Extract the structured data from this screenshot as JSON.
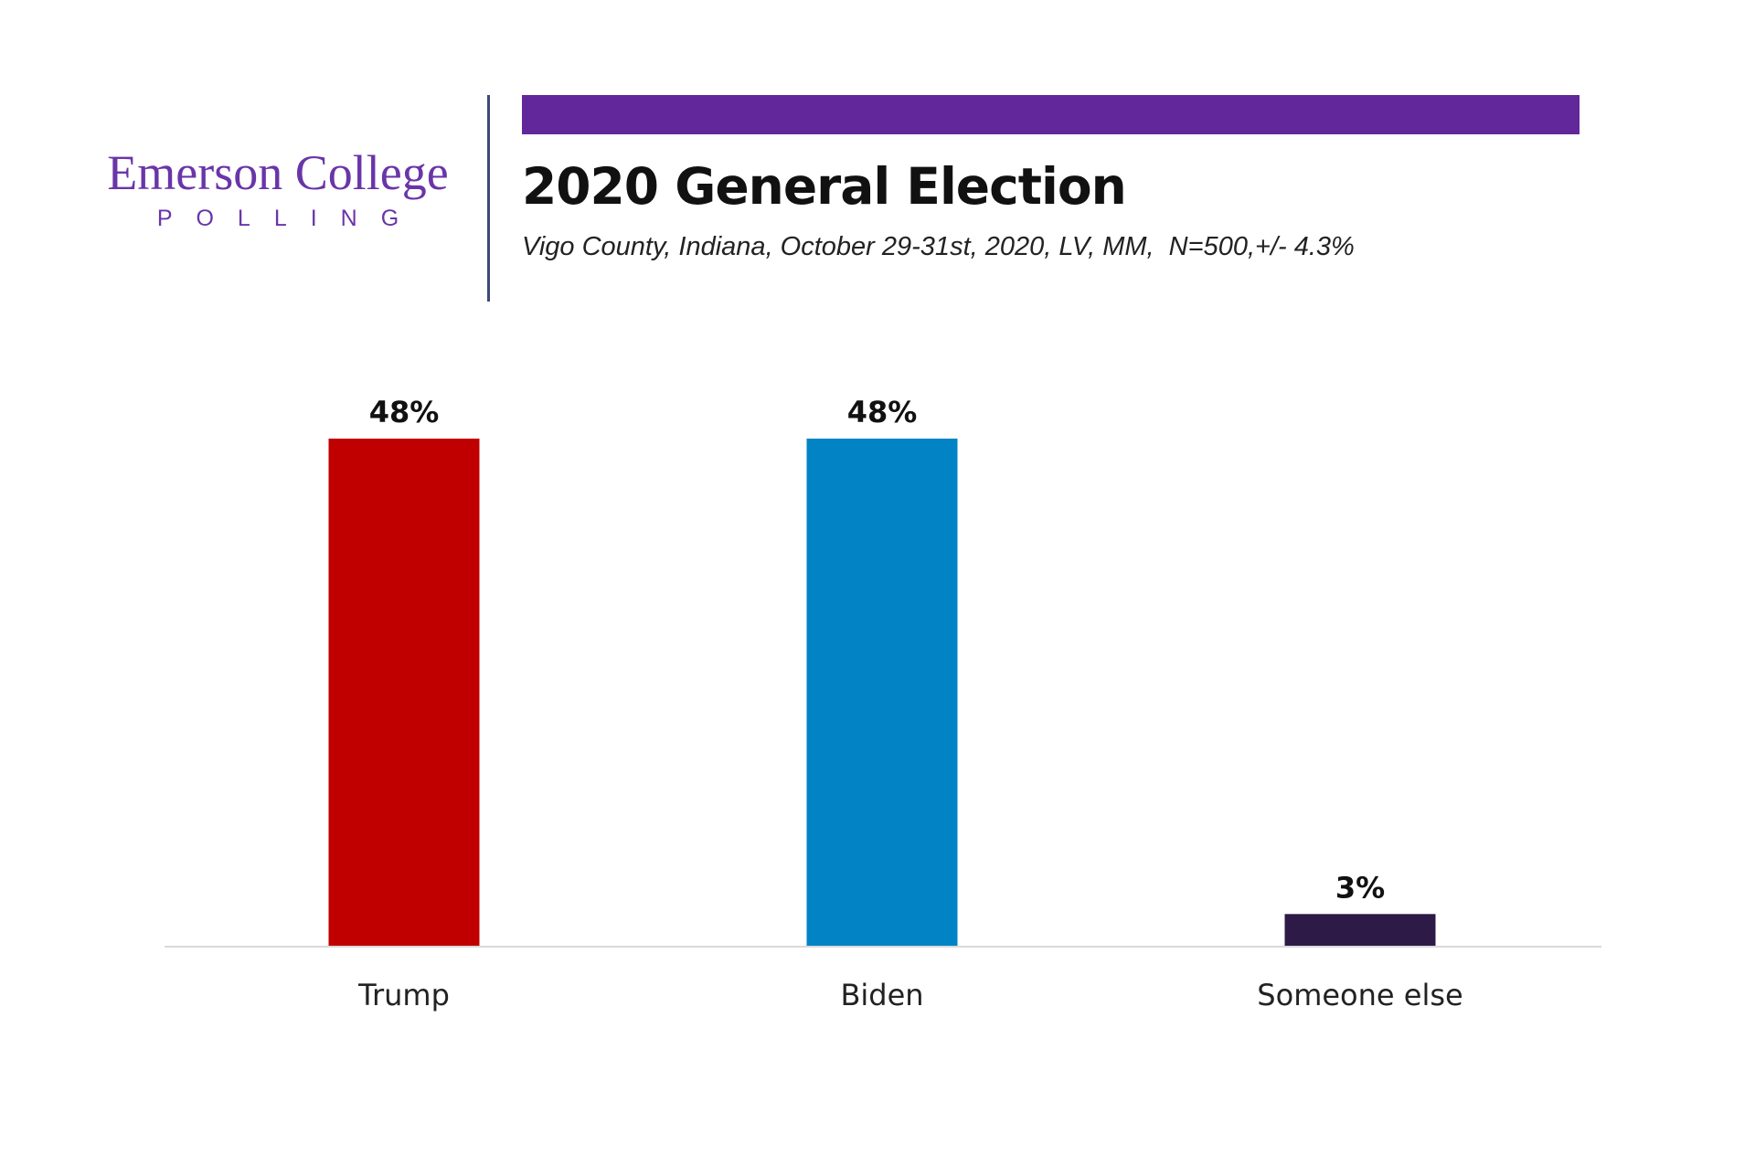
{
  "logo": {
    "name": "Emerson College",
    "sub": "POLLING",
    "color": "#6a35a8"
  },
  "header": {
    "accent_bar_color": "#61279b",
    "title": "2020 General Election",
    "subtitle": "Vigo County, Indiana, October 29-31st, 2020, LV, MM,  N=500,+/- 4.3%"
  },
  "chart_data": {
    "type": "bar",
    "title": "2020 General Election",
    "subtitle": "Vigo County, Indiana, October 29-31st, 2020, LV, MM,  N=500,+/- 4.3%",
    "categories": [
      "Trump",
      "Biden",
      "Someone else"
    ],
    "values": [
      48,
      48,
      3
    ],
    "data_labels": [
      "48%",
      "48%",
      "3%"
    ],
    "colors": [
      "#c00000",
      "#0283c5",
      "#2e1a46"
    ],
    "xlabel": "",
    "ylabel": "",
    "ylim": [
      0,
      48
    ],
    "grid": false,
    "legend": "none"
  }
}
